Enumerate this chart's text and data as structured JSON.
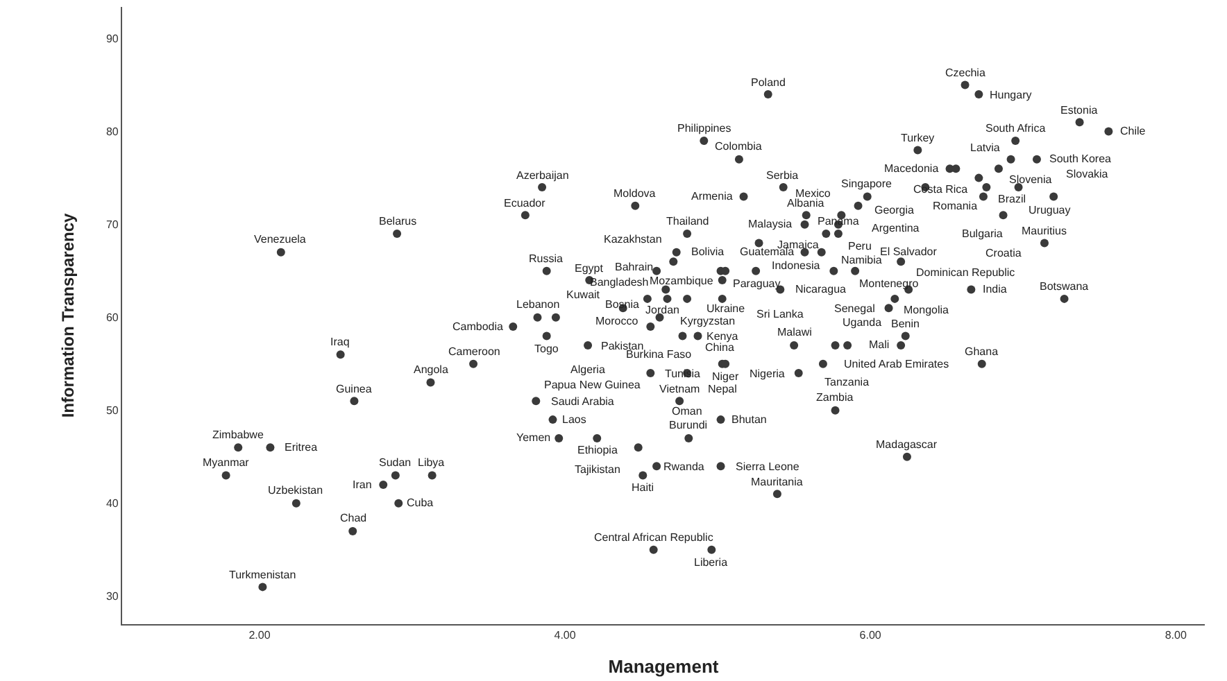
{
  "chart_data": {
    "type": "scatter",
    "xlabel": "Management",
    "ylabel": "Information Transparency",
    "xlim": [
      1.1,
      8.19
    ],
    "ylim": [
      27.0,
      93.4
    ],
    "xticks": [
      {
        "value": 2,
        "label": "2.00"
      },
      {
        "value": 4,
        "label": "4.00"
      },
      {
        "value": 6,
        "label": "6.00"
      },
      {
        "value": 8,
        "label": "8.00"
      }
    ],
    "yticks": [
      30,
      40,
      50,
      60,
      70,
      80,
      90
    ],
    "marker": "circle",
    "series": [
      {
        "color": "#3a3a3a",
        "x": [
          5.33,
          6.62,
          6.71,
          7.37,
          7.56,
          6.95,
          6.31,
          4.91,
          6.92,
          7.09,
          5.14,
          6.52,
          6.56,
          6.84,
          6.71,
          6.76,
          6.97,
          6.36,
          6.74,
          7.2,
          6.87,
          7.14,
          5.43,
          3.85,
          5.98,
          5.17,
          4.46,
          5.92,
          3.74,
          5.58,
          5.81,
          5.57,
          5.79,
          2.9,
          4.8,
          5.71,
          5.79,
          2.14,
          5.27,
          4.73,
          5.57,
          5.68,
          6.2,
          4.71,
          3.88,
          5.02,
          5.05,
          5.25,
          5.9,
          5.76,
          4.6,
          4.16,
          5.03,
          4.66,
          4.54,
          4.67,
          4.8,
          5.03,
          3.82,
          3.94,
          3.66,
          3.88,
          4.38,
          4.62,
          4.56,
          4.77,
          4.87,
          4.15,
          2.53,
          3.4,
          5.03,
          5.05,
          5.69,
          4.8,
          4.56,
          5.53,
          5.5,
          5.77,
          5.85,
          6.23,
          6.2,
          6.16,
          6.12,
          6.25,
          5.41,
          6.66,
          7.27,
          6.73,
          3.12,
          3.81,
          2.62,
          4.75,
          5.77,
          3.92,
          5.02,
          3.96,
          4.21,
          4.81,
          1.86,
          2.07,
          4.48,
          6.24,
          4.6,
          5.02,
          1.78,
          2.89,
          3.13,
          4.51,
          2.81,
          2.24,
          2.91,
          5.39,
          2.61,
          4.58,
          4.96,
          2.02
        ],
        "values": [
          84,
          85,
          84,
          81,
          80,
          79,
          78,
          79,
          77,
          77,
          77,
          76,
          76,
          76,
          75,
          74,
          74,
          74,
          73,
          73,
          71,
          68,
          74,
          74,
          73,
          73,
          72,
          72,
          71,
          71,
          71,
          70,
          70,
          69,
          69,
          69,
          69,
          67,
          68,
          67,
          67,
          67,
          66,
          66,
          65,
          65,
          65,
          65,
          65,
          65,
          65,
          64,
          64,
          63,
          62,
          62,
          62,
          62,
          60,
          60,
          59,
          58,
          61,
          60,
          59,
          58,
          58,
          57,
          56,
          55,
          55,
          55,
          55,
          54,
          54,
          54,
          57,
          57,
          57,
          58,
          57,
          62,
          61,
          63,
          63,
          63,
          62,
          55,
          53,
          51,
          51,
          51,
          50,
          49,
          49,
          47,
          47,
          47,
          46,
          46,
          46,
          45,
          44,
          44,
          43,
          43,
          43,
          43,
          42,
          40,
          40,
          41,
          37,
          35,
          35,
          31
        ]
      }
    ],
    "annotations": [
      {
        "text": "Poland",
        "x": 5.33,
        "y": 84
      },
      {
        "text": "Czechia",
        "x": 6.62,
        "y": 85
      },
      {
        "text": "Hungary",
        "x": 6.71,
        "y": 84
      },
      {
        "text": "Estonia",
        "x": 7.37,
        "y": 81
      },
      {
        "text": "Chile",
        "x": 7.56,
        "y": 80
      },
      {
        "text": "South Africa",
        "x": 6.95,
        "y": 79
      },
      {
        "text": "Turkey",
        "x": 6.31,
        "y": 78
      },
      {
        "text": "Philippines",
        "x": 4.91,
        "y": 79
      },
      {
        "text": "Latvia",
        "x": 6.92,
        "y": 77
      },
      {
        "text": "South Korea",
        "x": 7.09,
        "y": 77
      },
      {
        "text": "Colombia",
        "x": 5.14,
        "y": 77
      },
      {
        "text": "Macedonia",
        "x": 6.52,
        "y": 76
      },
      {
        "text": "Romania",
        "x": 6.56,
        "y": 76
      },
      {
        "text": "Slovenia",
        "x": 6.84,
        "y": 76
      },
      {
        "text": "Brazil",
        "x": 6.76,
        "y": 74
      },
      {
        "text": "Uruguay",
        "x": 6.97,
        "y": 74
      },
      {
        "text": "Georgia",
        "x": 6.36,
        "y": 74
      },
      {
        "text": "Bulgaria",
        "x": 6.74,
        "y": 73
      },
      {
        "text": "Slovakia",
        "x": 7.2,
        "y": 73
      },
      {
        "text": "Croatia",
        "x": 6.87,
        "y": 71
      },
      {
        "text": "Mauritius",
        "x": 7.14,
        "y": 68
      },
      {
        "text": "Serbia",
        "x": 5.43,
        "y": 74
      },
      {
        "text": "Azerbaijan",
        "x": 3.85,
        "y": 74
      },
      {
        "text": "Singapore",
        "x": 5.98,
        "y": 73
      },
      {
        "text": "Armenia",
        "x": 5.17,
        "y": 73
      },
      {
        "text": "Moldova",
        "x": 4.46,
        "y": 72
      },
      {
        "text": "Argentina",
        "x": 5.92,
        "y": 72
      },
      {
        "text": "Ecuador",
        "x": 3.74,
        "y": 71
      },
      {
        "text": "Albania",
        "x": 5.58,
        "y": 71
      },
      {
        "text": "Malaysia",
        "x": 5.57,
        "y": 70
      },
      {
        "text": "Peru",
        "x": 5.79,
        "y": 70
      },
      {
        "text": "Belarus",
        "x": 2.9,
        "y": 69
      },
      {
        "text": "Thailand",
        "x": 4.8,
        "y": 69
      },
      {
        "text": "Jamaica",
        "x": 5.71,
        "y": 69
      },
      {
        "text": "Venezuela",
        "x": 2.14,
        "y": 67
      },
      {
        "text": "Indonesia",
        "x": 5.27,
        "y": 68
      },
      {
        "text": "Bolivia",
        "x": 4.73,
        "y": 67
      },
      {
        "text": "Nicaragua",
        "x": 5.68,
        "y": 67
      },
      {
        "text": "Dominican Republic",
        "x": 6.2,
        "y": 66
      },
      {
        "text": "Kazakhstan",
        "x": 4.71,
        "y": 66
      },
      {
        "text": "Russia",
        "x": 3.88,
        "y": 65
      },
      {
        "text": "Ukraine",
        "x": 5.05,
        "y": 65
      },
      {
        "text": "Paraguay",
        "x": 5.25,
        "y": 65
      },
      {
        "text": "Senegal",
        "x": 5.9,
        "y": 65
      },
      {
        "text": "Namibia",
        "x": 5.76,
        "y": 65
      },
      {
        "text": "Egypt",
        "x": 4.16,
        "y": 64
      },
      {
        "text": "Mozambique",
        "x": 5.03,
        "y": 64
      },
      {
        "text": "Bahrain",
        "x": 4.66,
        "y": 63
      },
      {
        "text": "Morocco",
        "x": 4.54,
        "y": 62
      },
      {
        "text": "Kyrgyzstan",
        "x": 4.67,
        "y": 62
      },
      {
        "text": "Jordan",
        "x": 4.8,
        "y": 62
      },
      {
        "text": "Kenya",
        "x": 5.03,
        "y": 62
      },
      {
        "text": "Lebanon",
        "x": 3.82,
        "y": 60
      },
      {
        "text": "Kuwait",
        "x": 3.94,
        "y": 60
      },
      {
        "text": "Cambodia",
        "x": 3.66,
        "y": 59
      },
      {
        "text": "Togo",
        "x": 3.88,
        "y": 58
      },
      {
        "text": "Pakistan",
        "x": 4.38,
        "y": 61
      },
      {
        "text": "Burkina Faso",
        "x": 4.62,
        "y": 60
      },
      {
        "text": "Bosnia",
        "x": 4.56,
        "y": 59
      },
      {
        "text": "Tunisia",
        "x": 4.77,
        "y": 58
      },
      {
        "text": "China",
        "x": 4.87,
        "y": 58
      },
      {
        "text": "Algeria",
        "x": 4.15,
        "y": 57
      },
      {
        "text": "Iraq",
        "x": 2.53,
        "y": 56
      },
      {
        "text": "Cameroon",
        "x": 3.4,
        "y": 55
      },
      {
        "text": "Nepal",
        "x": 5.03,
        "y": 55
      },
      {
        "text": "United Arab Emirates",
        "x": 5.69,
        "y": 55
      },
      {
        "text": "Oman",
        "x": 4.8,
        "y": 54
      },
      {
        "text": "Papua New Guinea",
        "x": 4.56,
        "y": 54
      },
      {
        "text": "Nigeria",
        "x": 5.53,
        "y": 54
      },
      {
        "text": "Malawi",
        "x": 5.5,
        "y": 57
      },
      {
        "text": "Uganda",
        "x": 5.77,
        "y": 57
      },
      {
        "text": "Tanzania",
        "x": 5.85,
        "y": 57
      },
      {
        "text": "Benin",
        "x": 6.23,
        "y": 58
      },
      {
        "text": "Mali",
        "x": 6.2,
        "y": 57
      },
      {
        "text": "Mongolia",
        "x": 6.16,
        "y": 62
      },
      {
        "text": "Montenegro",
        "x": 6.12,
        "y": 61
      },
      {
        "text": "El Salvador",
        "x": 6.25,
        "y": 63
      },
      {
        "text": "Sri Lanka",
        "x": 5.41,
        "y": 63
      },
      {
        "text": "India",
        "x": 6.66,
        "y": 63
      },
      {
        "text": "Botswana",
        "x": 7.27,
        "y": 62
      },
      {
        "text": "Ghana",
        "x": 6.73,
        "y": 55
      },
      {
        "text": "Angola",
        "x": 3.12,
        "y": 53
      },
      {
        "text": "Saudi Arabia",
        "x": 3.81,
        "y": 51
      },
      {
        "text": "Guinea",
        "x": 2.62,
        "y": 51
      },
      {
        "text": "Vietnam",
        "x": 4.75,
        "y": 51
      },
      {
        "text": "Zambia",
        "x": 5.77,
        "y": 50
      },
      {
        "text": "Laos",
        "x": 3.92,
        "y": 49
      },
      {
        "text": "Bhutan",
        "x": 5.02,
        "y": 49
      },
      {
        "text": "Yemen",
        "x": 3.96,
        "y": 47
      },
      {
        "text": "Ethiopia",
        "x": 4.21,
        "y": 47
      },
      {
        "text": "Burundi",
        "x": 4.81,
        "y": 47
      },
      {
        "text": "Zimbabwe",
        "x": 1.86,
        "y": 46
      },
      {
        "text": "Eritrea",
        "x": 2.07,
        "y": 46
      },
      {
        "text": "Tajikistan",
        "x": 4.48,
        "y": 46
      },
      {
        "text": "Madagascar",
        "x": 6.24,
        "y": 45
      },
      {
        "text": "Rwanda",
        "x": 4.6,
        "y": 44
      },
      {
        "text": "Sierra Leone",
        "x": 5.02,
        "y": 44
      },
      {
        "text": "Myanmar",
        "x": 1.78,
        "y": 43
      },
      {
        "text": "Sudan",
        "x": 2.89,
        "y": 43
      },
      {
        "text": "Libya",
        "x": 3.13,
        "y": 43
      },
      {
        "text": "Haiti",
        "x": 4.51,
        "y": 43
      },
      {
        "text": "Iran",
        "x": 2.81,
        "y": 42
      },
      {
        "text": "Uzbekistan",
        "x": 2.24,
        "y": 40
      },
      {
        "text": "Cuba",
        "x": 2.91,
        "y": 40
      },
      {
        "text": "Mauritania",
        "x": 5.39,
        "y": 41
      },
      {
        "text": "Chad",
        "x": 2.61,
        "y": 37
      },
      {
        "text": "Central African Republic",
        "x": 4.58,
        "y": 35
      },
      {
        "text": "Liberia",
        "x": 4.96,
        "y": 35
      },
      {
        "text": "Turkmenistan",
        "x": 2.02,
        "y": 31
      },
      {
        "text": "Guatemala",
        "x": 5.57,
        "y": 67
      },
      {
        "text": "Bangladesh",
        "x": 4.6,
        "y": 65
      },
      {
        "text": "Costa Rica",
        "x": 6.71,
        "y": 75
      },
      {
        "text": "Mexico",
        "x": 5.81,
        "y": 71
      },
      {
        "text": "Panama",
        "x": 5.79,
        "y": 69
      },
      {
        "text": "Niger",
        "x": 5.05,
        "y": 55
      }
    ]
  }
}
